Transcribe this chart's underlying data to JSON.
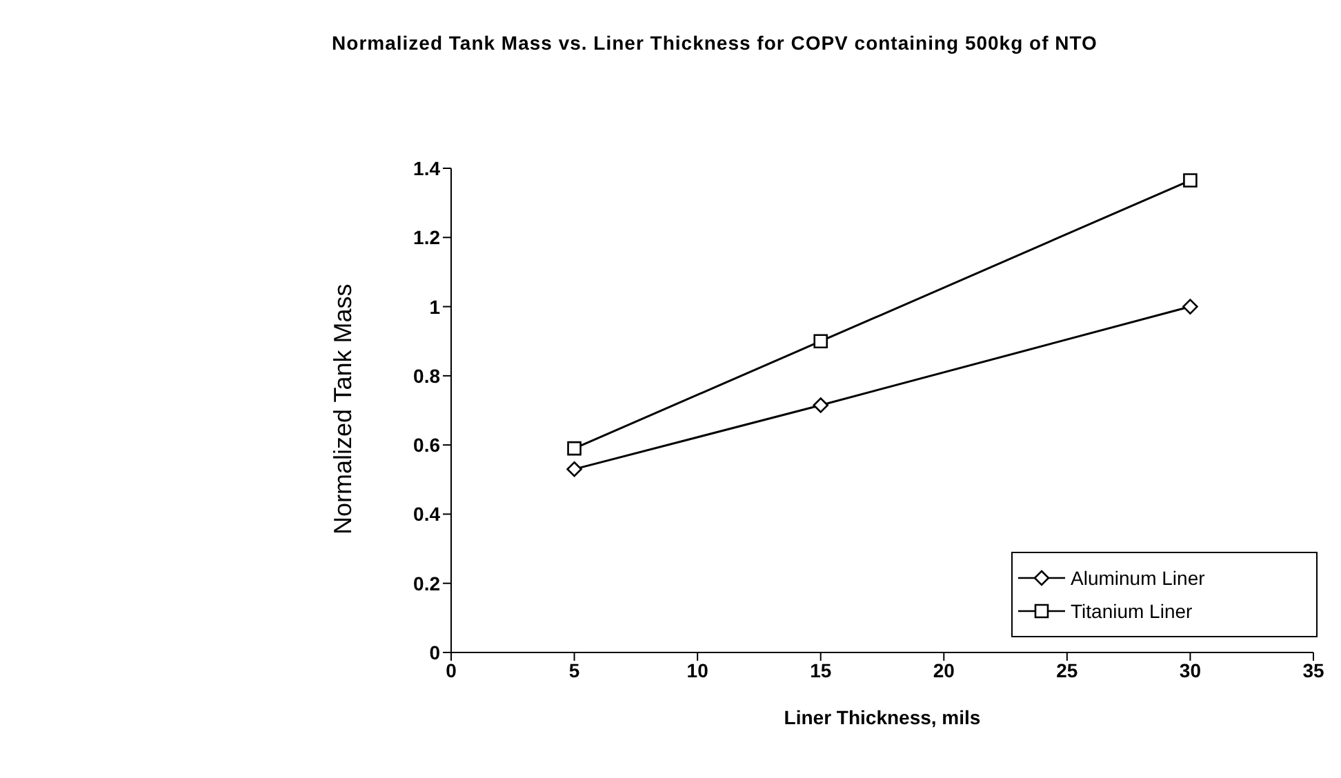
{
  "chart_data": {
    "type": "line",
    "title": "Normalized Tank Mass vs. Liner Thickness for COPV containing 500kg of NTO",
    "xlabel": "Liner Thickness, mils",
    "ylabel": "Normalized Tank Mass",
    "x": [
      5,
      15,
      30
    ],
    "series": [
      {
        "name": "Aluminum Liner",
        "color": "#000000",
        "marker": "diamond",
        "values": [
          0.53,
          0.715,
          1.0
        ]
      },
      {
        "name": "Titanium Liner",
        "color": "#000000",
        "marker": "square",
        "values": [
          0.59,
          0.9,
          1.365
        ]
      }
    ],
    "xlim": [
      0,
      35
    ],
    "xticks": [
      0,
      5,
      10,
      15,
      20,
      25,
      30,
      35
    ],
    "ylim": [
      0,
      1.4
    ],
    "yticks": [
      0,
      0.2,
      0.4,
      0.6,
      0.8,
      1,
      1.2,
      1.4
    ],
    "grid": false,
    "legend": "bottom right",
    "line_style": "solid"
  }
}
